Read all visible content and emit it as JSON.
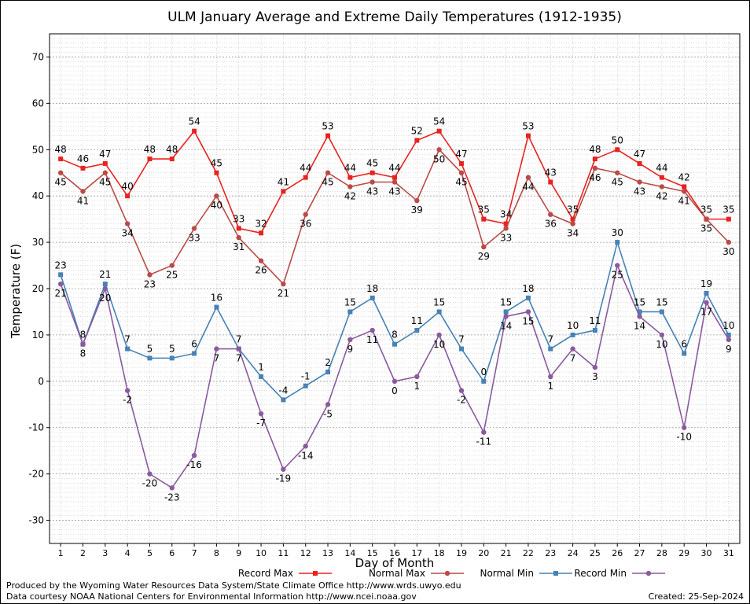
{
  "chart_data": {
    "type": "line",
    "title": "ULM January Average and Extreme Daily Temperatures (1912-1935)",
    "xlabel": "Day of Month",
    "ylabel": "Temperature (F)",
    "ylim": [
      -35,
      75
    ],
    "yticks": [
      -30,
      -20,
      -10,
      0,
      10,
      20,
      30,
      40,
      50,
      60,
      70
    ],
    "x": [
      1,
      2,
      3,
      4,
      5,
      6,
      7,
      8,
      9,
      10,
      11,
      12,
      13,
      14,
      15,
      16,
      17,
      18,
      19,
      20,
      21,
      22,
      23,
      24,
      25,
      26,
      27,
      28,
      29,
      30,
      31
    ],
    "grid": true,
    "legend_position": "bottom",
    "series": [
      {
        "name": "Record Max",
        "color": "#e8231f",
        "marker": "square",
        "values": [
          48,
          46,
          47,
          40,
          48,
          48,
          54,
          45,
          33,
          32,
          41,
          44,
          53,
          44,
          45,
          44,
          52,
          54,
          47,
          35,
          34,
          53,
          43,
          35,
          48,
          50,
          47,
          44,
          42,
          35,
          35
        ]
      },
      {
        "name": "Normal Max",
        "color": "#b94a48",
        "marker": "circle",
        "values": [
          45,
          41,
          45,
          34,
          23,
          25,
          33,
          40,
          31,
          26,
          21,
          36,
          45,
          42,
          43,
          43,
          39,
          50,
          45,
          29,
          33,
          44,
          36,
          34,
          46,
          45,
          43,
          42,
          41,
          35,
          30
        ]
      },
      {
        "name": "Normal Min",
        "color": "#4682b4",
        "marker": "square",
        "values": [
          23,
          8,
          21,
          7,
          5,
          5,
          6,
          16,
          7,
          1,
          -4,
          -1,
          2,
          15,
          18,
          8,
          11,
          15,
          7,
          0,
          15,
          18,
          7,
          10,
          11,
          30,
          15,
          15,
          6,
          19,
          10
        ]
      },
      {
        "name": "Record Min",
        "color": "#8a5a9e",
        "marker": "circle",
        "values": [
          21,
          8,
          20,
          -2,
          -20,
          -23,
          -16,
          7,
          7,
          -7,
          -19,
          -14,
          -5,
          9,
          11,
          0,
          1,
          10,
          -2,
          -11,
          14,
          15,
          1,
          7,
          3,
          25,
          14,
          10,
          -10,
          17,
          9
        ]
      }
    ]
  },
  "footer": {
    "produced_by": "Produced by the Wyoming Water Resources Data System/State Climate Office http://www.wrds.uwyo.edu",
    "courtesy": "Data courtesy NOAA National Centers for Environmental Information http://www.ncei.noaa.gov",
    "created": "Created:  25-Sep-2024"
  }
}
